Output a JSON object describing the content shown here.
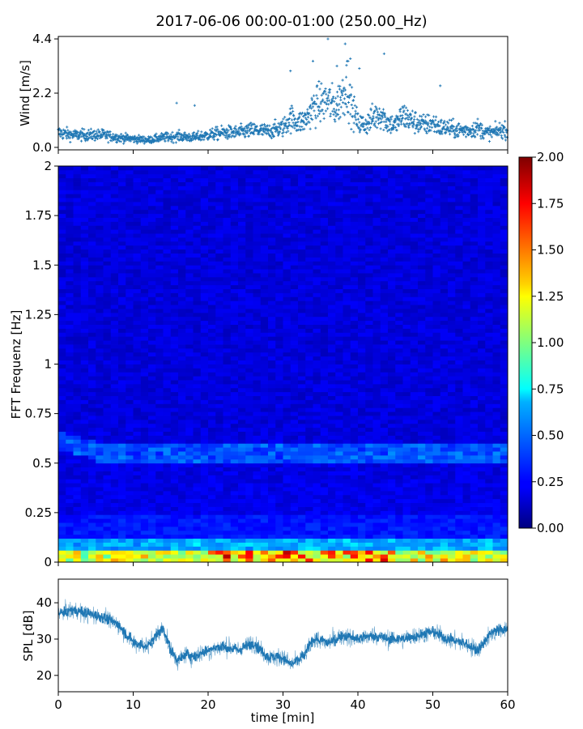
{
  "figure": {
    "title": "2017-06-06 00:00-01:00 (250.00_Hz)"
  },
  "chart_data": [
    {
      "type": "scatter",
      "panel": "wind",
      "ylabel": "Wind [m/s]",
      "xlim": [
        0,
        60
      ],
      "ylim": [
        -0.1,
        4.5
      ],
      "yticks": [
        0.0,
        2.2,
        4.4
      ],
      "ytick_labels": [
        "0.0",
        "2.2",
        "4.4"
      ],
      "color": "#1f77b4",
      "marker": "+",
      "series": [
        {
          "x": [
            0,
            2,
            4,
            6,
            8,
            10,
            12,
            14,
            16,
            18,
            20,
            22,
            24,
            26,
            28,
            30,
            31,
            32,
            33,
            34,
            35,
            36,
            37,
            38,
            38.5,
            39,
            40,
            41,
            42,
            43,
            44,
            45,
            46,
            47,
            48,
            49,
            50,
            51,
            52,
            53,
            54,
            55,
            56,
            57,
            58,
            59,
            60
          ],
          "y": [
            0.6,
            0.5,
            0.5,
            0.5,
            0.4,
            0.35,
            0.3,
            0.4,
            0.45,
            0.4,
            0.5,
            0.6,
            0.6,
            0.7,
            0.65,
            0.8,
            1.2,
            1.0,
            1.1,
            1.6,
            1.8,
            1.9,
            1.6,
            2.2,
            2.6,
            1.8,
            1.0,
            0.9,
            1.2,
            1.4,
            1.0,
            0.9,
            1.3,
            1.1,
            1.0,
            0.9,
            1.0,
            0.8,
            0.8,
            0.7,
            0.7,
            0.7,
            0.8,
            0.6,
            0.6,
            0.7,
            0.7
          ]
        }
      ]
    },
    {
      "type": "heatmap",
      "panel": "spectrogram",
      "ylabel": "FFT Frequenz [Hz]",
      "xlim": [
        0,
        60
      ],
      "ylim": [
        0,
        2
      ],
      "yticks": [
        0,
        0.25,
        0.5,
        0.75,
        1,
        1.25,
        1.5,
        1.75,
        2
      ],
      "ytick_labels": [
        "0",
        "0.25",
        "0.5",
        "0.75",
        "1",
        "1.25",
        "1.5",
        "1.75",
        "2"
      ],
      "colormap": "jet",
      "colorbar": {
        "vmin": 0.0,
        "vmax": 2.0,
        "ticks": [
          0.0,
          0.25,
          0.5,
          0.75,
          1.0,
          1.25,
          1.5,
          1.75,
          2.0
        ],
        "tick_labels": [
          "0.00",
          "0.25",
          "0.50",
          "0.75",
          "1.00",
          "1.25",
          "1.50",
          "1.75",
          "2.00"
        ]
      },
      "x_bins": 60,
      "freq_bins": 100
    },
    {
      "type": "line",
      "panel": "spl",
      "ylabel": "SPL [dB]",
      "xlabel": "time [min]",
      "xlim": [
        0,
        60
      ],
      "ylim": [
        15.5,
        46.5
      ],
      "xticks": [
        0,
        10,
        20,
        30,
        40,
        50,
        60
      ],
      "xtick_labels": [
        "0",
        "10",
        "20",
        "30",
        "40",
        "50",
        "60"
      ],
      "yticks": [
        20,
        30,
        40
      ],
      "ytick_labels": [
        "20",
        "30",
        "40"
      ],
      "color": "#1f77b4",
      "series": [
        {
          "x": [
            0,
            2,
            4,
            6,
            8,
            10,
            12,
            13,
            14,
            15,
            16,
            17,
            18,
            20,
            22,
            24,
            26,
            28,
            30,
            31,
            32,
            33,
            34,
            36,
            38,
            40,
            42,
            44,
            46,
            48,
            50,
            52,
            54,
            56,
            58,
            60
          ],
          "y": [
            37,
            38,
            37,
            36,
            34,
            29,
            28,
            31,
            33,
            27,
            24,
            26,
            25,
            27,
            28,
            27,
            29,
            25,
            25,
            23,
            24,
            26,
            30,
            29,
            31,
            30,
            31,
            30,
            30,
            31,
            32,
            30,
            29,
            27,
            32,
            33
          ]
        }
      ]
    }
  ]
}
